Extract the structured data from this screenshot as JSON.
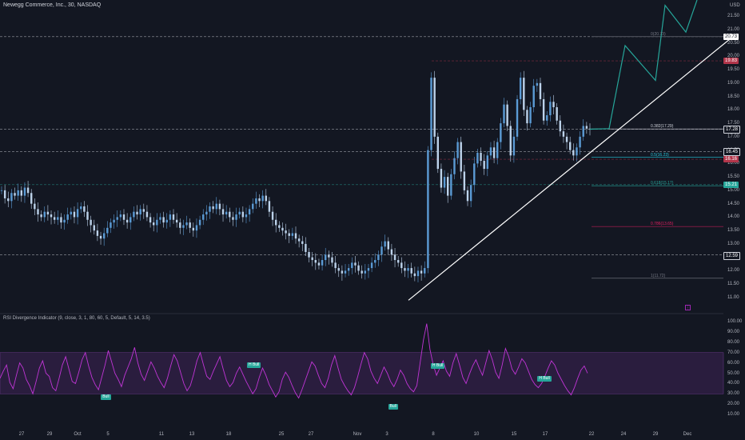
{
  "symbol_title": "Newegg Commerce, Inc., 30, NASDAQ",
  "price_unit": "USD",
  "indicator_title": "RSI Divergence Indicator (9, close, 3, 1, 80, 60, 5, Default, 5, 14, 3.5)",
  "indicator_button": "⋮",
  "colors": {
    "bg": "#131722",
    "up": "#5b9bd5",
    "down": "#bcd2ea",
    "trend": "#ffffff",
    "projection": "#26a69a",
    "rsi": "#c035d6",
    "rsi_band": "#2a1d3e",
    "resistance": "#b2354a"
  },
  "chart_data": {
    "type": "candlestick",
    "x_ticks": [
      "27",
      "29",
      "Oct",
      "5",
      "11",
      "13",
      "18",
      "25",
      "27",
      "Nov",
      "3",
      "8",
      "10",
      "15",
      "17",
      "22",
      "24",
      "29",
      "Dec"
    ],
    "y_ticks": [
      "21.50",
      "21.00",
      "20.50",
      "20.00",
      "19.50",
      "19.00",
      "18.50",
      "18.00",
      "17.50",
      "17.00",
      "16.50",
      "16.00",
      "15.50",
      "15.00",
      "14.50",
      "14.00",
      "13.50",
      "13.00",
      "12.50",
      "12.00",
      "11.50",
      "11.00"
    ],
    "ylim": [
      10.7,
      21.8
    ],
    "price_badges": [
      {
        "label": "20.73",
        "value": 20.73,
        "style": "white"
      },
      {
        "label": "19.83",
        "value": 19.83,
        "style": "red"
      },
      {
        "label": "17.28",
        "value": 17.28,
        "style": "dark"
      },
      {
        "label": "16.45",
        "value": 16.45,
        "style": "dark"
      },
      {
        "label": "16.16",
        "value": 16.16,
        "style": "red"
      },
      {
        "label": "15.21",
        "value": 15.21,
        "style": "green"
      },
      {
        "label": "12.59",
        "value": 12.59,
        "style": "dark"
      }
    ],
    "horizontal_lines": [
      20.73,
      19.83,
      17.28,
      16.45,
      16.16,
      15.21,
      12.59
    ],
    "fib_levels": [
      {
        "label": "0(20.73)",
        "value": 20.73,
        "color": "#787b86"
      },
      {
        "label": "0.382(17.29)",
        "value": 17.29,
        "color": "#d1d4dc"
      },
      {
        "label": "0.5(16.23)",
        "value": 16.23,
        "color": "#26c6da"
      },
      {
        "label": "0.618(15.17)",
        "value": 15.17,
        "color": "#26a69a"
      },
      {
        "label": "0.786(13.65)",
        "value": 13.65,
        "color": "#e91e63"
      },
      {
        "label": "1(11.72)",
        "value": 11.72,
        "color": "#787b86"
      }
    ],
    "closes": [
      15.0,
      14.7,
      14.6,
      14.9,
      14.8,
      15.0,
      14.8,
      15.1,
      14.9,
      14.5,
      14.3,
      14.1,
      14.0,
      14.2,
      14.1,
      14.0,
      13.9,
      14.0,
      13.8,
      13.9,
      14.1,
      14.2,
      14.0,
      14.3,
      14.4,
      14.2,
      13.9,
      13.7,
      13.5,
      13.3,
      13.2,
      13.4,
      13.6,
      13.8,
      13.9,
      14.0,
      14.1,
      13.9,
      13.8,
      14.0,
      14.2,
      14.1,
      14.3,
      14.2,
      14.0,
      13.8,
      13.7,
      13.9,
      14.0,
      13.8,
      13.9,
      14.1,
      13.9,
      13.8,
      13.6,
      13.7,
      13.8,
      13.6,
      13.5,
      13.7,
      13.9,
      14.1,
      14.2,
      14.4,
      14.3,
      14.5,
      14.3,
      14.1,
      14.2,
      14.0,
      13.9,
      14.1,
      14.2,
      14.0,
      14.1,
      14.3,
      14.5,
      14.7,
      14.6,
      14.8,
      14.6,
      14.2,
      13.9,
      13.7,
      13.6,
      13.5,
      13.4,
      13.3,
      13.4,
      13.2,
      13.1,
      13.0,
      12.7,
      12.5,
      12.4,
      12.3,
      12.2,
      12.4,
      12.6,
      12.5,
      12.3,
      12.1,
      12.0,
      11.9,
      12.0,
      12.1,
      12.3,
      12.2,
      12.0,
      11.9,
      12.0,
      12.1,
      12.3,
      12.4,
      12.6,
      12.9,
      13.1,
      12.8,
      12.6,
      12.4,
      12.3,
      12.1,
      12.0,
      12.1,
      11.9,
      11.8,
      12.0,
      11.9,
      12.1,
      16.5,
      19.2,
      17.0,
      15.8,
      15.1,
      15.5,
      14.8,
      15.6,
      16.2,
      16.8,
      15.7,
      15.0,
      14.6,
      15.2,
      16.0,
      16.4,
      16.1,
      15.8,
      16.3,
      16.6,
      16.2,
      16.8,
      17.5,
      18.2,
      17.4,
      16.3,
      17.0,
      18.4,
      19.2,
      18.0,
      17.5,
      18.1,
      18.9,
      19.0,
      18.4,
      17.6,
      17.8,
      18.3,
      18.1,
      17.6,
      17.2,
      17.0,
      16.8,
      16.5,
      16.3,
      16.6,
      17.0,
      17.4,
      17.3,
      17.28
    ],
    "rsi_ticks": [
      "100.00",
      "90.00",
      "80.00",
      "70.00",
      "60.00",
      "50.00",
      "40.00",
      "30.00",
      "20.00",
      "10.00"
    ],
    "rsi_band": [
      30,
      70
    ],
    "rsi_mid": 50,
    "rsi_values": [
      45,
      52,
      58,
      41,
      35,
      48,
      60,
      55,
      44,
      38,
      30,
      42,
      55,
      62,
      50,
      47,
      36,
      33,
      45,
      58,
      66,
      54,
      42,
      40,
      51,
      63,
      70,
      57,
      46,
      39,
      34,
      46,
      58,
      72,
      61,
      50,
      44,
      37,
      48,
      56,
      64,
      75,
      60,
      49,
      43,
      52,
      61,
      55,
      47,
      41,
      36,
      45,
      57,
      68,
      62,
      51,
      40,
      33,
      38,
      49,
      62,
      70,
      58,
      47,
      44,
      52,
      59,
      66,
      54,
      43,
      37,
      41,
      50,
      56,
      49,
      42,
      36,
      30,
      35,
      46,
      55,
      48,
      39,
      33,
      27,
      32,
      44,
      51,
      46,
      38,
      31,
      26,
      34,
      43,
      52,
      61,
      57,
      48,
      40,
      36,
      45,
      58,
      67,
      55,
      44,
      38,
      33,
      29,
      36,
      47,
      59,
      70,
      64,
      52,
      45,
      40,
      48,
      56,
      50,
      42,
      37,
      44,
      53,
      48,
      40,
      35,
      32,
      38,
      60,
      82,
      98,
      73,
      58,
      48,
      55,
      62,
      52,
      47,
      60,
      69,
      58,
      46,
      40,
      49,
      57,
      63,
      55,
      48,
      60,
      72,
      63,
      51,
      45,
      58,
      74,
      66,
      54,
      49,
      56,
      64,
      60,
      52,
      44,
      39,
      36,
      40,
      47,
      55,
      62,
      58,
      50,
      44,
      38,
      33,
      29,
      36,
      45,
      53,
      57,
      50
    ],
    "rsi_x_range": [
      0,
      735
    ],
    "divergence_tags": [
      {
        "label": "Bull",
        "value": 27,
        "index": 42
      },
      {
        "label": "H Bull",
        "value": 58,
        "index": 131
      },
      {
        "label": "Bull",
        "value": 18,
        "index": 217
      },
      {
        "label": "H Bull",
        "value": 57,
        "index": 243
      },
      {
        "label": "H Bull",
        "value": 45,
        "index": 308
      }
    ],
    "trendline": {
      "from": {
        "x_tick": "3",
        "value": 10.9
      },
      "to": {
        "x_tick": "Dec",
        "value": 20.73
      }
    },
    "projection": [
      17.28,
      17.3,
      20.4,
      19.1,
      21.9,
      20.9,
      22.2
    ]
  }
}
